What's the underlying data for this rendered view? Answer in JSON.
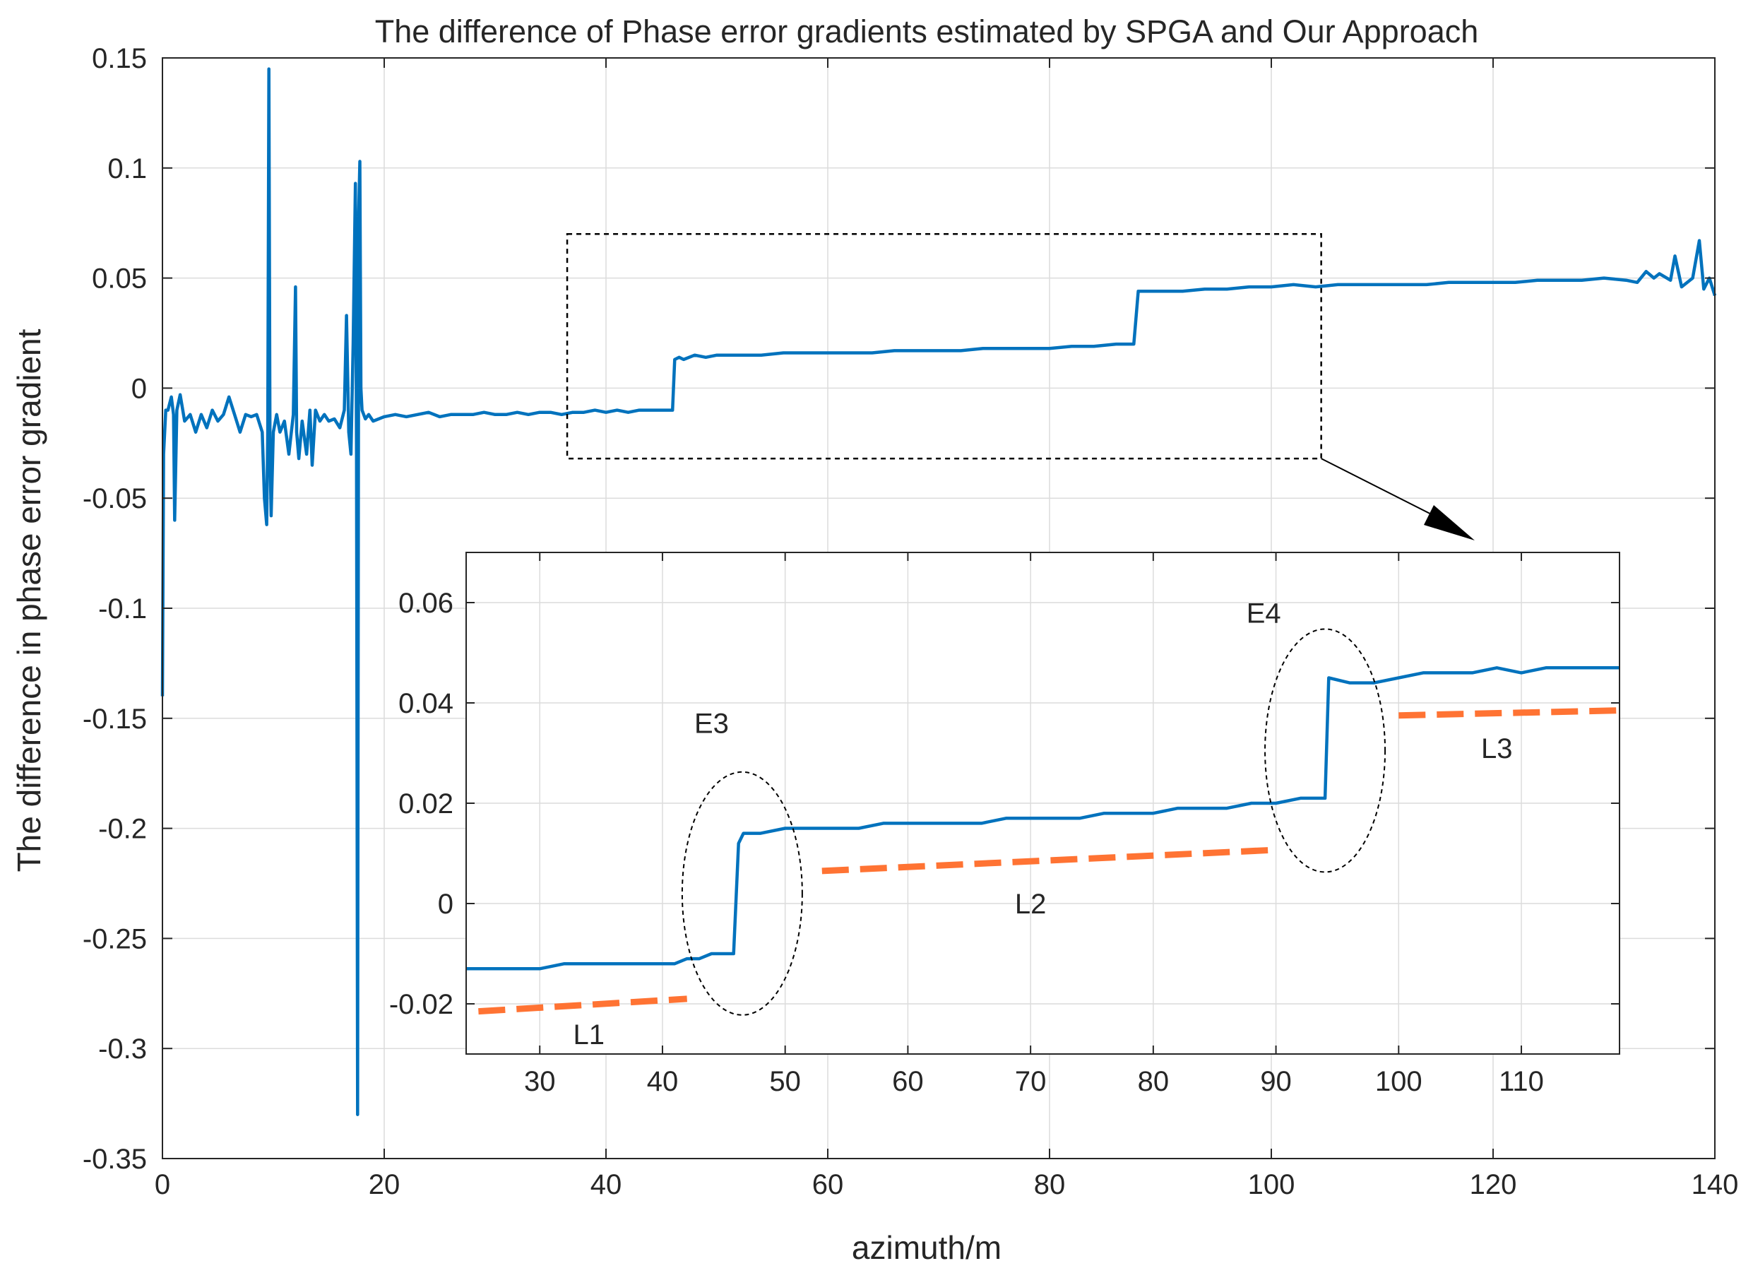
{
  "chart_data": [
    {
      "type": "line",
      "title": "The difference of Phase error gradients estimated by SPGA and Our Approach",
      "xlabel": "azimuth/m",
      "ylabel": "The difference in phase error gradient",
      "xlim": [
        0,
        140
      ],
      "ylim": [
        -0.35,
        0.15
      ],
      "xticks": [
        0,
        20,
        40,
        60,
        80,
        100,
        120,
        140
      ],
      "xtick_labels": [
        "0",
        "20",
        "40",
        "60",
        "80",
        "100",
        "120",
        "140"
      ],
      "yticks": [
        -0.35,
        -0.3,
        -0.25,
        -0.2,
        -0.15,
        -0.1,
        -0.05,
        0,
        0.05,
        0.1,
        0.15
      ],
      "ytick_labels": [
        "-0.35",
        "-0.3",
        "-0.25",
        "-0.2",
        "-0.15",
        "-0.1",
        "-0.05",
        "0",
        "0.05",
        "0.1",
        "0.15"
      ],
      "grid": true,
      "series": [
        {
          "color": "#0072BD",
          "x": [
            0,
            0.1,
            0.3,
            0.5,
            0.8,
            1.0,
            1.1,
            1.3,
            1.6,
            2.0,
            2.5,
            3.0,
            3.5,
            4.0,
            4.5,
            5.0,
            5.5,
            6.0,
            6.5,
            7.0,
            7.5,
            8.0,
            8.5,
            9.0,
            9.2,
            9.4,
            9.5,
            9.6,
            9.7,
            9.8,
            10.0,
            10.3,
            10.6,
            11.0,
            11.4,
            11.8,
            12.0,
            12.1,
            12.3,
            12.6,
            13.0,
            13.3,
            13.5,
            13.8,
            14.2,
            14.6,
            15.0,
            15.5,
            16.0,
            16.4,
            16.6,
            16.8,
            17.0,
            17.2,
            17.4,
            17.5,
            17.6,
            17.7,
            17.8,
            17.9,
            18.0,
            18.3,
            18.6,
            19.0,
            20,
            21,
            22,
            23,
            24,
            25,
            26,
            27,
            28,
            29,
            30,
            31,
            32,
            33,
            34,
            35,
            36,
            37,
            38,
            39,
            40,
            41,
            42,
            43,
            44,
            45,
            46,
            46.2,
            46.6,
            47,
            48,
            49,
            50,
            52,
            54,
            56,
            58,
            60,
            62,
            64,
            66,
            68,
            70,
            72,
            74,
            76,
            78,
            80,
            82,
            84,
            86,
            87,
            87.6,
            88,
            90,
            92,
            94,
            96,
            98,
            100,
            102,
            104,
            106,
            108,
            110,
            112,
            114,
            116,
            118,
            120,
            122,
            124,
            126,
            128,
            130,
            132,
            133,
            133.8,
            134.5,
            135,
            136,
            136.4,
            137,
            138,
            138.6,
            139,
            139.5,
            140
          ],
          "y": [
            -0.14,
            -0.03,
            -0.01,
            -0.01,
            -0.004,
            -0.012,
            -0.06,
            -0.01,
            -0.003,
            -0.015,
            -0.012,
            -0.02,
            -0.012,
            -0.018,
            -0.01,
            -0.015,
            -0.012,
            -0.004,
            -0.012,
            -0.02,
            -0.012,
            -0.013,
            -0.012,
            -0.02,
            -0.05,
            -0.062,
            -0.02,
            0.145,
            -0.03,
            -0.058,
            -0.02,
            -0.012,
            -0.02,
            -0.015,
            -0.03,
            -0.012,
            0.046,
            -0.02,
            -0.032,
            -0.015,
            -0.03,
            -0.01,
            -0.035,
            -0.01,
            -0.015,
            -0.012,
            -0.015,
            -0.014,
            -0.018,
            -0.01,
            0.033,
            -0.02,
            -0.03,
            0.02,
            0.093,
            -0.03,
            -0.33,
            0.08,
            0.103,
            0.0,
            -0.01,
            -0.014,
            -0.012,
            -0.015,
            -0.013,
            -0.012,
            -0.013,
            -0.012,
            -0.011,
            -0.013,
            -0.012,
            -0.012,
            -0.012,
            -0.011,
            -0.012,
            -0.012,
            -0.011,
            -0.012,
            -0.011,
            -0.011,
            -0.012,
            -0.011,
            -0.011,
            -0.01,
            -0.011,
            -0.01,
            -0.011,
            -0.01,
            -0.01,
            -0.01,
            -0.01,
            0.013,
            0.014,
            0.013,
            0.015,
            0.014,
            0.015,
            0.015,
            0.015,
            0.016,
            0.016,
            0.016,
            0.016,
            0.016,
            0.017,
            0.017,
            0.017,
            0.017,
            0.018,
            0.018,
            0.018,
            0.018,
            0.019,
            0.019,
            0.02,
            0.02,
            0.02,
            0.044,
            0.044,
            0.044,
            0.045,
            0.045,
            0.046,
            0.046,
            0.047,
            0.046,
            0.047,
            0.047,
            0.047,
            0.047,
            0.047,
            0.048,
            0.048,
            0.048,
            0.048,
            0.049,
            0.049,
            0.049,
            0.05,
            0.049,
            0.048,
            0.053,
            0.05,
            0.052,
            0.049,
            0.06,
            0.046,
            0.05,
            0.067,
            0.045,
            0.05,
            0.042
          ]
        }
      ]
    },
    {
      "type": "line",
      "title": "",
      "xlim": [
        24,
        118
      ],
      "ylim": [
        -0.03,
        0.07
      ],
      "xticks": [
        30,
        40,
        50,
        60,
        70,
        80,
        90,
        100,
        110
      ],
      "xtick_labels": [
        "30",
        "40",
        "50",
        "60",
        "70",
        "80",
        "90",
        "100",
        "110"
      ],
      "yticks": [
        -0.02,
        0,
        0.02,
        0.04,
        0.06
      ],
      "ytick_labels": [
        "-0.02",
        "0",
        "0.02",
        "0.04",
        "0.06"
      ],
      "grid": true,
      "series": [
        {
          "color": "#0072BD",
          "x": [
            24,
            26,
            28,
            30,
            32,
            34,
            36,
            38,
            40,
            41,
            42,
            43,
            44,
            45,
            45.8,
            46.2,
            46.6,
            48,
            50,
            52,
            54,
            56,
            58,
            60,
            62,
            64,
            66,
            68,
            70,
            72,
            74,
            76,
            78,
            80,
            82,
            84,
            86,
            88,
            90,
            92,
            93.5,
            94,
            94.3,
            96,
            98,
            100,
            102,
            104,
            106,
            108,
            110,
            112,
            114,
            116,
            118
          ],
          "y": [
            -0.013,
            -0.013,
            -0.013,
            -0.013,
            -0.012,
            -0.012,
            -0.012,
            -0.012,
            -0.012,
            -0.012,
            -0.011,
            -0.011,
            -0.01,
            -0.01,
            -0.01,
            0.012,
            0.014,
            0.014,
            0.015,
            0.015,
            0.015,
            0.015,
            0.016,
            0.016,
            0.016,
            0.016,
            0.016,
            0.017,
            0.017,
            0.017,
            0.017,
            0.018,
            0.018,
            0.018,
            0.019,
            0.019,
            0.019,
            0.02,
            0.02,
            0.021,
            0.021,
            0.021,
            0.045,
            0.044,
            0.044,
            0.045,
            0.046,
            0.046,
            0.046,
            0.047,
            0.046,
            0.047,
            0.047,
            0.047,
            0.047
          ]
        },
        {
          "color": "#FF7333",
          "style": "dashed",
          "segments": [
            {
              "x": [
                25,
                42
              ],
              "y": [
                -0.0215,
                -0.019
              ]
            },
            {
              "x": [
                53,
                90
              ],
              "y": [
                0.0065,
                0.0107
              ]
            },
            {
              "x": [
                100,
                118
              ],
              "y": [
                0.0375,
                0.0385
              ]
            }
          ]
        }
      ],
      "annotations": [
        {
          "text": "L1",
          "x": 34,
          "y": -0.028
        },
        {
          "text": "L2",
          "x": 70,
          "y": -0.002
        },
        {
          "text": "L3",
          "x": 108,
          "y": 0.029
        },
        {
          "text": "E3",
          "x": 44,
          "y": 0.034
        },
        {
          "text": "E4",
          "x": 89,
          "y": 0.056
        }
      ]
    }
  ]
}
